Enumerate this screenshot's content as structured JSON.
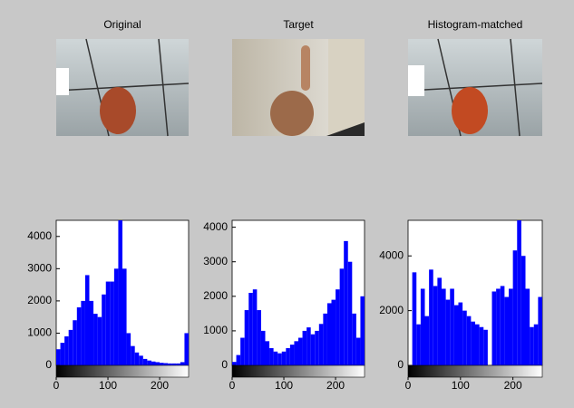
{
  "images": [
    {
      "title": "Original"
    },
    {
      "title": "Target"
    },
    {
      "title": "Histogram-matched"
    }
  ],
  "chart_data": [
    {
      "type": "histogram",
      "color": "#0000ff",
      "bins": [
        0,
        8,
        16,
        24,
        32,
        40,
        48,
        56,
        64,
        72,
        80,
        88,
        96,
        104,
        112,
        120,
        128,
        136,
        144,
        152,
        160,
        168,
        176,
        184,
        192,
        200,
        208,
        216,
        224,
        232,
        240,
        248,
        256
      ],
      "values": [
        500,
        700,
        900,
        1100,
        1400,
        1800,
        2000,
        2800,
        2000,
        1600,
        1500,
        2200,
        2600,
        2600,
        3000,
        4500,
        3000,
        1000,
        600,
        400,
        300,
        200,
        150,
        120,
        100,
        80,
        70,
        60,
        60,
        60,
        100,
        1000
      ],
      "xlim": [
        0,
        256
      ],
      "xticks": [
        0,
        100,
        200
      ],
      "ylim": [
        0,
        4500
      ],
      "yticks": [
        0,
        1000,
        2000,
        3000,
        4000
      ]
    },
    {
      "type": "histogram",
      "color": "#0000ff",
      "bins": [
        0,
        8,
        16,
        24,
        32,
        40,
        48,
        56,
        64,
        72,
        80,
        88,
        96,
        104,
        112,
        120,
        128,
        136,
        144,
        152,
        160,
        168,
        176,
        184,
        192,
        200,
        208,
        216,
        224,
        232,
        240,
        248,
        256
      ],
      "values": [
        100,
        300,
        800,
        1600,
        2100,
        2200,
        1600,
        1000,
        700,
        500,
        400,
        350,
        400,
        500,
        600,
        700,
        800,
        1000,
        1100,
        900,
        1000,
        1200,
        1500,
        1800,
        1900,
        2200,
        2800,
        3600,
        3000,
        1500,
        800,
        2000
      ],
      "xlim": [
        0,
        256
      ],
      "xticks": [
        0,
        100,
        200
      ],
      "ylim": [
        0,
        4200
      ],
      "yticks": [
        0,
        1000,
        2000,
        3000,
        4000
      ]
    },
    {
      "type": "histogram",
      "color": "#0000ff",
      "bins": [
        0,
        8,
        16,
        24,
        32,
        40,
        48,
        56,
        64,
        72,
        80,
        88,
        96,
        104,
        112,
        120,
        128,
        136,
        144,
        152,
        160,
        168,
        176,
        184,
        192,
        200,
        208,
        216,
        224,
        232,
        240,
        248,
        256
      ],
      "values": [
        0,
        3400,
        1500,
        2800,
        1800,
        3500,
        2900,
        3200,
        2800,
        2400,
        2800,
        2200,
        2300,
        2000,
        1800,
        1600,
        1500,
        1400,
        1300,
        0,
        2700,
        2800,
        2900,
        2500,
        2800,
        4200,
        5300,
        4000,
        2800,
        1400,
        1500,
        2500
      ],
      "xlim": [
        0,
        256
      ],
      "xticks": [
        0,
        100,
        200
      ],
      "ylim": [
        0,
        5300
      ],
      "yticks": [
        0,
        2000,
        4000
      ]
    }
  ]
}
